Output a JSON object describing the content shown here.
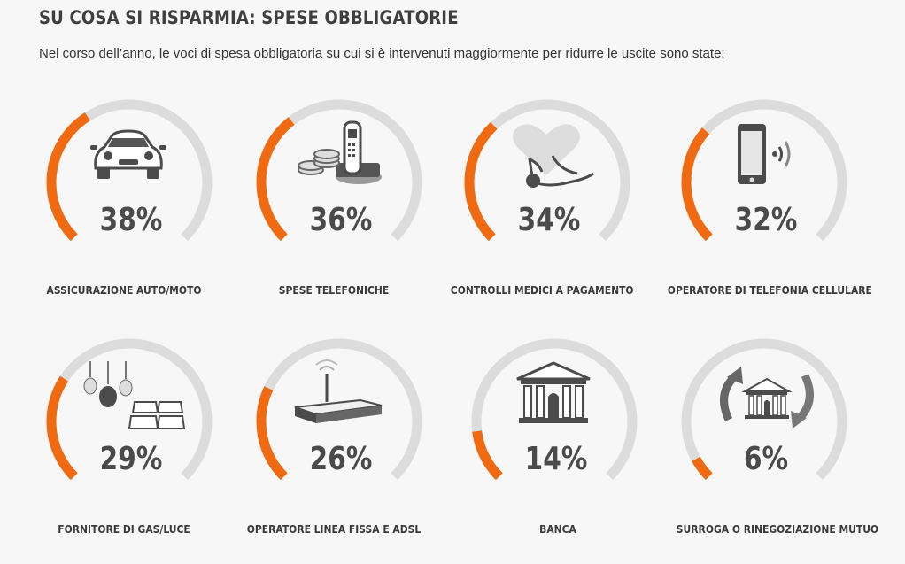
{
  "title": "SU COSA SI RISPARMIA: SPESE OBBLIGATORIE",
  "subtitle": "Nel corso dell’anno, le voci di spesa obbligatoria su cui si è intervenuti maggiormente per ridurre le uscite sono state:",
  "accent_color": "#f06a12",
  "track_color": "#dcdcdc",
  "items": [
    {
      "label": "ASSICURAZIONE AUTO/MOTO",
      "percent_text": "38%",
      "value": 38,
      "icon": "car-icon"
    },
    {
      "label": "SPESE TELEFONICHE",
      "percent_text": "36%",
      "value": 36,
      "icon": "phone-coins-icon"
    },
    {
      "label": "CONTROLLI MEDICI A PAGAMENTO",
      "percent_text": "34%",
      "value": 34,
      "icon": "heart-stethoscope-icon"
    },
    {
      "label": "OPERATORE DI TELEFONIA CELLULARE",
      "percent_text": "32%",
      "value": 32,
      "icon": "smartphone-icon"
    },
    {
      "label": "FORNITORE DI GAS/LUCE",
      "percent_text": "29%",
      "value": 29,
      "icon": "bulbs-solar-icon"
    },
    {
      "label": "OPERATORE LINEA FISSA E ADSL",
      "percent_text": "26%",
      "value": 26,
      "icon": "router-icon"
    },
    {
      "label": "BANCA",
      "percent_text": "14%",
      "value": 14,
      "icon": "bank-icon"
    },
    {
      "label": "SURROGA O RINEGOZIAZIONE MUTUO",
      "percent_text": "6%",
      "value": 6,
      "icon": "house-refresh-icon"
    }
  ]
}
